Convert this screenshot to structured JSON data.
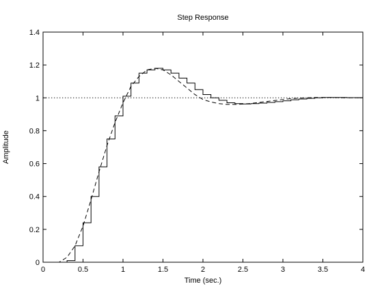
{
  "chart_data": {
    "type": "line",
    "title": "Step Response",
    "xlabel": "Time (sec.)",
    "ylabel": "Amplitude",
    "xlim": [
      0,
      4
    ],
    "ylim": [
      0,
      1.4
    ],
    "x_ticks": [
      0,
      0.5,
      1,
      1.5,
      2,
      2.5,
      3,
      3.5,
      4
    ],
    "x_tick_labels": [
      "0",
      "0.5",
      "1",
      "1.5",
      "2",
      "2.5",
      "3",
      "3.5",
      "4"
    ],
    "y_ticks": [
      0,
      0.2,
      0.4,
      0.6,
      0.8,
      1,
      1.2,
      1.4
    ],
    "y_tick_labels": [
      "0",
      "0.2",
      "0.4",
      "0.6",
      "0.8",
      "1",
      "1.2",
      "1.4"
    ],
    "grid": false,
    "reference_line": {
      "y": 1,
      "style": "dotted",
      "color": "#000000"
    },
    "series": [
      {
        "style": "dashed",
        "color": "#000000",
        "x": [
          0,
          0.2,
          0.3,
          0.4,
          0.5,
          0.6,
          0.7,
          0.8,
          0.9,
          1,
          1.1,
          1.2,
          1.3,
          1.4,
          1.5,
          1.6,
          1.7,
          1.8,
          1.9,
          2,
          2.1,
          2.2,
          2.3,
          2.4,
          2.5,
          2.6,
          2.7,
          2.8,
          2.9,
          3,
          3.1,
          3.2,
          3.3,
          3.4,
          3.5,
          3.6,
          3.7,
          3.8,
          3.9,
          4
        ],
        "y": [
          0,
          0,
          0.03,
          0.1,
          0.22,
          0.38,
          0.55,
          0.71,
          0.85,
          0.97,
          1.07,
          1.13,
          1.17,
          1.18,
          1.17,
          1.14,
          1.1,
          1.06,
          1.02,
          0.99,
          0.975,
          0.965,
          0.96,
          0.96,
          0.962,
          0.966,
          0.972,
          0.978,
          0.984,
          0.99,
          0.995,
          0.998,
          1,
          1.002,
          1.002,
          1.002,
          1.001,
          1,
          1,
          1
        ]
      },
      {
        "style": "stairs",
        "color": "#000000",
        "x": [
          0,
          0.1,
          0.2,
          0.3,
          0.4,
          0.5,
          0.6,
          0.7,
          0.8,
          0.9,
          1,
          1.1,
          1.2,
          1.3,
          1.4,
          1.5,
          1.6,
          1.7,
          1.8,
          1.9,
          2,
          2.1,
          2.2,
          2.3,
          2.4,
          2.5,
          2.6,
          2.7,
          2.8,
          2.9,
          3,
          3.1,
          3.2,
          3.3,
          3.4,
          3.5,
          3.6,
          3.7,
          3.8,
          3.9
        ],
        "y": [
          0,
          0,
          0,
          0.01,
          0.1,
          0.24,
          0.4,
          0.58,
          0.75,
          0.89,
          1.01,
          1.09,
          1.15,
          1.17,
          1.18,
          1.17,
          1.15,
          1.12,
          1.09,
          1.05,
          1.02,
          1,
          0.985,
          0.97,
          0.965,
          0.963,
          0.965,
          0.968,
          0.972,
          0.977,
          0.982,
          0.988,
          0.993,
          0.997,
          1,
          1.002,
          1.002,
          1.002,
          1.001,
          1.001
        ]
      }
    ]
  }
}
